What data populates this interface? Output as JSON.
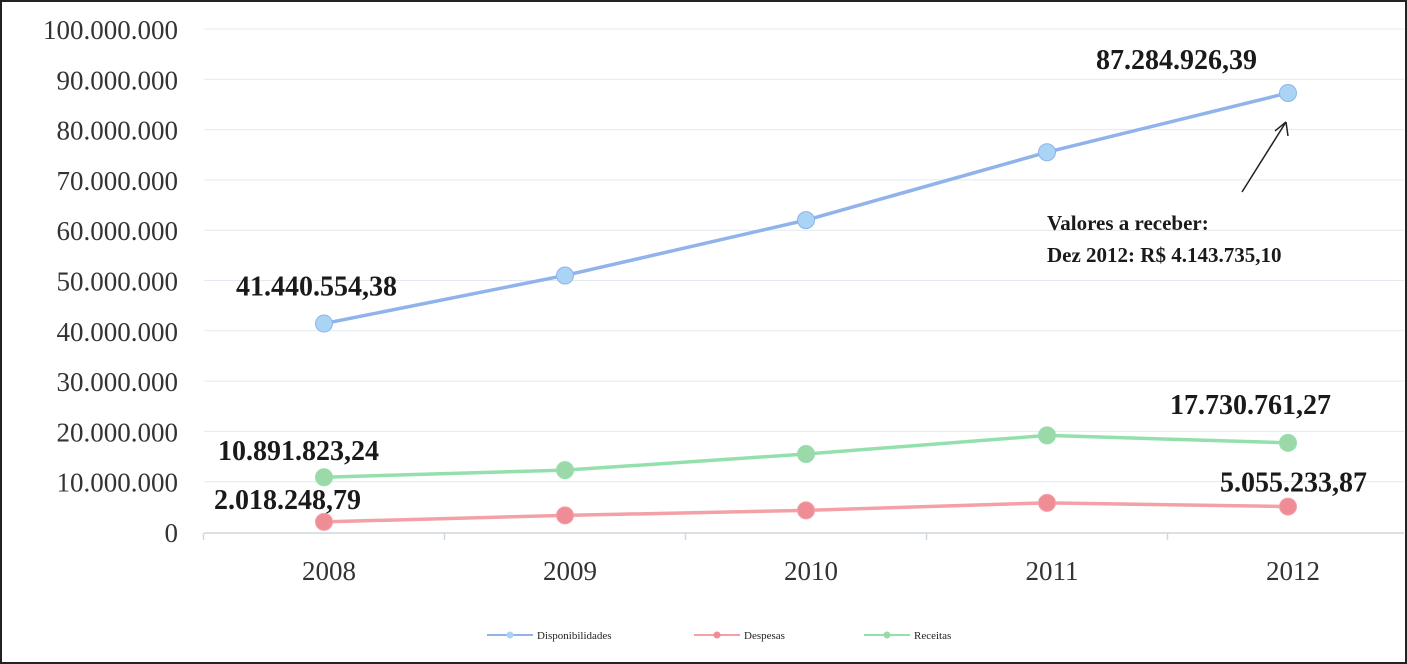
{
  "chart_data": {
    "type": "line",
    "categories": [
      "2008",
      "2009",
      "2010",
      "2011",
      "2012"
    ],
    "series": [
      {
        "name": "Disponibilidades",
        "color": "#8fb3ea",
        "marker_color": "#a9d4f5",
        "values": [
          41440554.38,
          51000000,
          62000000,
          75500000,
          87284926.39
        ]
      },
      {
        "name": "Despesas",
        "color": "#f3a0a6",
        "marker_color": "#ef8d96",
        "values": [
          2018248.79,
          3300000,
          4300000,
          5800000,
          5055233.87
        ]
      },
      {
        "name": "Receitas",
        "color": "#93e0ad",
        "marker_color": "#9bd9a8",
        "values": [
          10891823.24,
          12300000,
          15500000,
          19200000,
          17730761.27
        ]
      }
    ],
    "y_ticks": [
      "0",
      "10.000.000",
      "20.000.000",
      "30.000.000",
      "40.000.000",
      "50.000.000",
      "60.000.000",
      "70.000.000",
      "80.000.000",
      "90.000.000",
      "100.000.000"
    ],
    "ylim": [
      0,
      100000000
    ],
    "grid": true,
    "legend_position": "bottom",
    "data_labels": [
      {
        "series": 0,
        "index": 0,
        "text": "41.440.554,38"
      },
      {
        "series": 0,
        "index": 4,
        "text": "87.284.926,39"
      },
      {
        "series": 2,
        "index": 0,
        "text": "10.891.823,24"
      },
      {
        "series": 2,
        "index": 4,
        "text": "17.730.761,27"
      },
      {
        "series": 1,
        "index": 0,
        "text": "2.018.248,79"
      },
      {
        "series": 1,
        "index": 4,
        "text": "5.055.233,87"
      }
    ],
    "annotation": {
      "lines": [
        "Valores a receber:",
        "Dez 2012: R$ 4.143.735,10"
      ],
      "points_to": {
        "series": 0,
        "index": 4
      }
    }
  }
}
